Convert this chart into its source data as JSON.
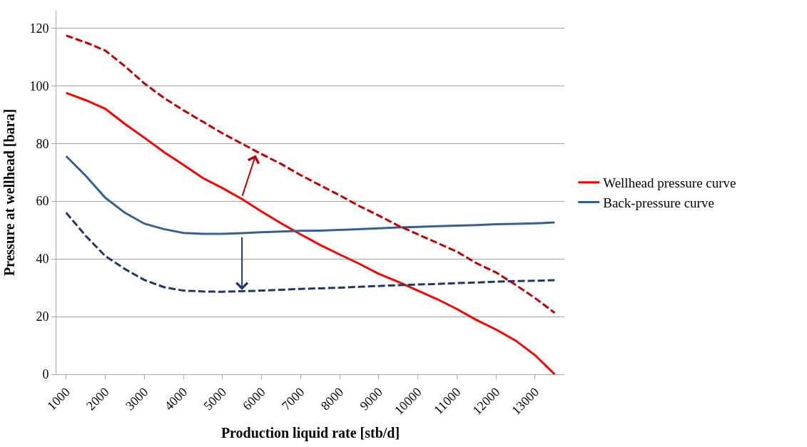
{
  "chart_data": {
    "type": "line",
    "xlabel": "Production liquid rate [stb/d]",
    "ylabel": "Pressure at wellhead [bara]",
    "x": [
      1000,
      1500,
      2000,
      2500,
      3000,
      3500,
      4000,
      4500,
      5000,
      5500,
      6000,
      6500,
      7000,
      7500,
      8000,
      8500,
      9000,
      9500,
      10000,
      10500,
      11000,
      11500,
      12000,
      12500,
      13000,
      13500
    ],
    "xlim": [
      750,
      13750
    ],
    "xticks": [
      1000,
      2000,
      3000,
      4000,
      5000,
      6000,
      7000,
      8000,
      9000,
      10000,
      11000,
      12000,
      13000
    ],
    "ylim": [
      0,
      126
    ],
    "yticks": [
      0,
      20,
      40,
      60,
      80,
      100,
      120
    ],
    "grid": "y",
    "legend": "right",
    "marker": "none",
    "series": [
      {
        "name": "Wellhead pressure curve",
        "color": "#ff0000",
        "line_style": "solid",
        "values": [
          97.5,
          95,
          92,
          86.8,
          82,
          77,
          72.6,
          68,
          64.5,
          60.7,
          56.4,
          52.3,
          48.5,
          44.8,
          41.5,
          38.3,
          34.8,
          32,
          29,
          26,
          22.6,
          18.8,
          15.5,
          11.7,
          6.6,
          0
        ]
      },
      {
        "name": "Back-pressure curve",
        "color": "#376092",
        "line_style": "solid",
        "values": [
          75.6,
          68.8,
          61.2,
          56,
          52.2,
          50.3,
          49,
          48.7,
          48.7,
          48.9,
          49.2,
          49.5,
          49.7,
          49.8,
          50,
          50.3,
          50.6,
          50.9,
          51.1,
          51.3,
          51.5,
          51.7,
          52,
          52.1,
          52.3,
          52.6
        ]
      },
      {
        "color": "#c00000",
        "line_style": "dashed",
        "values": [
          117.4,
          115,
          112.2,
          106.8,
          100.8,
          95.8,
          91.5,
          87.5,
          83.5,
          79.9,
          76.3,
          72.9,
          69,
          65.5,
          62,
          58.3,
          55,
          51.5,
          48.5,
          45.5,
          42.5,
          38.5,
          35.3,
          31,
          26.4,
          21.3
        ]
      },
      {
        "color": "#1f3864",
        "line_style": "dashed",
        "values": [
          56,
          48,
          41,
          36.5,
          32.7,
          30.2,
          29,
          28.7,
          28.6,
          28.8,
          29,
          29.3,
          29.6,
          29.8,
          30,
          30.3,
          30.6,
          30.9,
          31.1,
          31.3,
          31.6,
          31.8,
          32.1,
          32.3,
          32.4,
          32.6
        ]
      }
    ]
  }
}
